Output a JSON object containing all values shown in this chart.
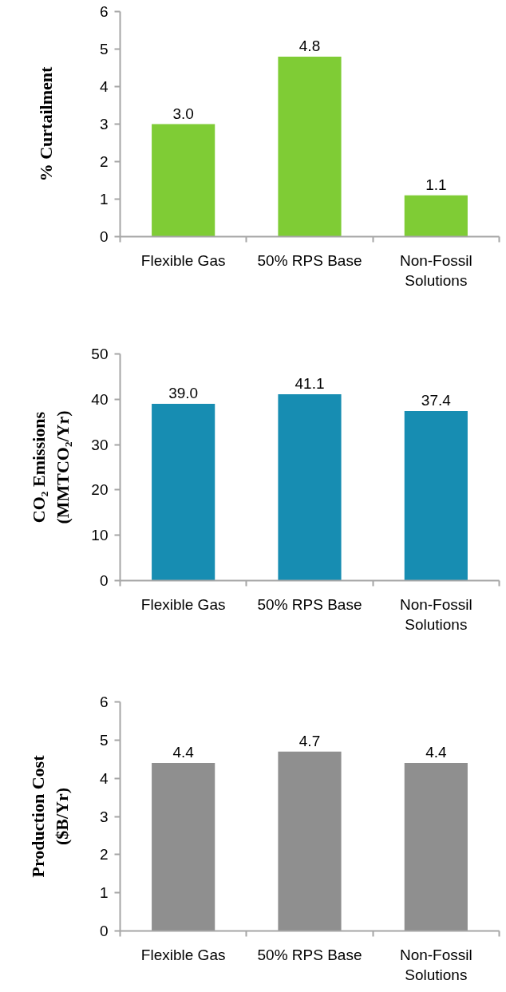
{
  "chart_data": [
    {
      "type": "bar",
      "ylabel": "% Curtailment",
      "categories": [
        "Flexible Gas",
        "50% RPS Base",
        "Non-Fossil Solutions"
      ],
      "values": [
        3.0,
        4.8,
        1.1
      ],
      "value_labels": [
        "3.0",
        "4.8",
        "1.1"
      ],
      "color": "#7fcc35",
      "ylim": [
        0,
        6
      ],
      "yticks": [
        0,
        1,
        2,
        3,
        4,
        5,
        6
      ]
    },
    {
      "type": "bar",
      "ylabel": "CO₂ Emissions (MMTCO₂/Yr)",
      "categories": [
        "Flexible Gas",
        "50% RPS Base",
        "Non-Fossil Solutions"
      ],
      "values": [
        39.0,
        41.1,
        37.4
      ],
      "value_labels": [
        "39.0",
        "41.1",
        "37.4"
      ],
      "color": "#178db2",
      "ylim": [
        0,
        50
      ],
      "yticks": [
        0,
        10,
        20,
        30,
        40,
        50
      ]
    },
    {
      "type": "bar",
      "ylabel": "Production Cost ($B/Yr)",
      "categories": [
        "Flexible Gas",
        "50% RPS Base",
        "Non-Fossil Solutions"
      ],
      "values": [
        4.4,
        4.7,
        4.4
      ],
      "value_labels": [
        "4.4",
        "4.7",
        "4.4"
      ],
      "color": "#8f8f8f",
      "ylim": [
        0,
        6
      ],
      "yticks": [
        0,
        1,
        2,
        3,
        4,
        5,
        6
      ]
    }
  ]
}
